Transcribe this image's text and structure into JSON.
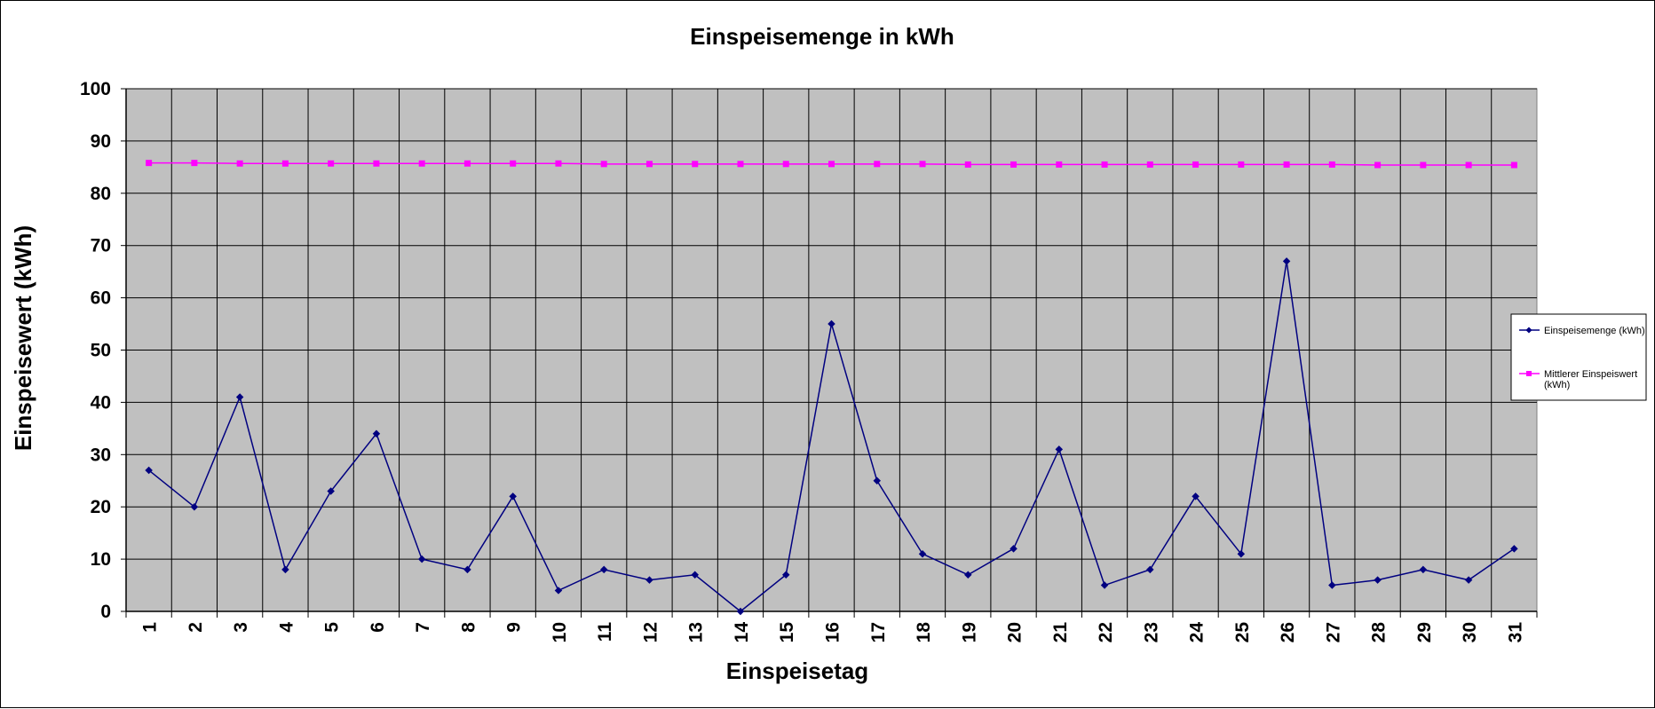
{
  "chart_data": {
    "type": "line",
    "title": "Einspeisemenge in kWh",
    "xlabel": "Einspeisetag",
    "ylabel": "Einspeisewert  (kWh)",
    "ylim": [
      0,
      100
    ],
    "yticks": [
      0,
      10,
      20,
      30,
      40,
      50,
      60,
      70,
      80,
      90,
      100
    ],
    "grid": true,
    "legend_position": "right",
    "plot_background": "#c0c0c0",
    "categories": [
      "1",
      "2",
      "3",
      "4",
      "5",
      "6",
      "7",
      "8",
      "9",
      "10",
      "11",
      "12",
      "13",
      "14",
      "15",
      "16",
      "17",
      "18",
      "19",
      "20",
      "21",
      "22",
      "23",
      "24",
      "25",
      "26",
      "27",
      "28",
      "29",
      "30",
      "31"
    ],
    "series": [
      {
        "name": "Einspeisemenge (kWh)",
        "color": "#000080",
        "marker": "diamond",
        "values": [
          27,
          20,
          41,
          8,
          23,
          34,
          10,
          8,
          22,
          4,
          8,
          6,
          7,
          0,
          7,
          55,
          25,
          11,
          7,
          12,
          31,
          5,
          8,
          22,
          11,
          67,
          5,
          6,
          8,
          6,
          12
        ]
      },
      {
        "name": "Mittlerer Einspeiswert (kWh)",
        "color": "#ff00ff",
        "marker": "square",
        "values": [
          85.8,
          85.8,
          85.7,
          85.7,
          85.7,
          85.7,
          85.7,
          85.7,
          85.7,
          85.7,
          85.6,
          85.6,
          85.6,
          85.6,
          85.6,
          85.6,
          85.6,
          85.6,
          85.5,
          85.5,
          85.5,
          85.5,
          85.5,
          85.5,
          85.5,
          85.5,
          85.5,
          85.4,
          85.4,
          85.4,
          85.4
        ]
      }
    ],
    "legend": {
      "entry1": "Einspeisemenge (kWh)",
      "entry2_line1": "Mittlerer Einspeiswert",
      "entry2_line2": "(kWh)"
    }
  }
}
